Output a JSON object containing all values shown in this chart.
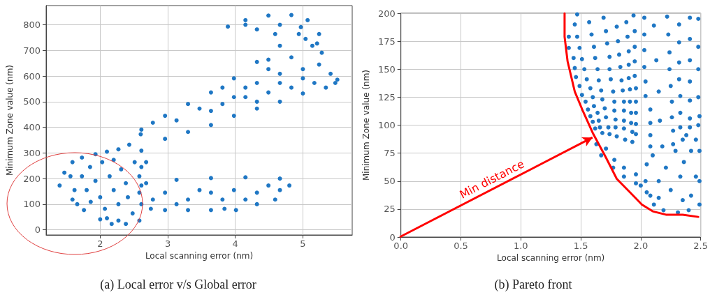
{
  "chart_data": [
    {
      "type": "scatter",
      "title": "(a) Local error v/s Global error",
      "xlabel": "Local scanning error (nm)",
      "ylabel": "Minimum Zone value (nm)",
      "xlim": [
        1.2,
        5.73
      ],
      "ylim": [
        -20,
        875
      ],
      "xticks": [
        2,
        3,
        4,
        5
      ],
      "yticks": [
        0,
        100,
        200,
        300,
        400,
        500,
        600,
        700,
        800
      ],
      "grid": true,
      "marker": "circle",
      "series": [
        {
          "color": "#1f77c4",
          "x": [
            1.4,
            1.47,
            1.59,
            1.73,
            1.93,
            2.1,
            2.27,
            2.43,
            1.59,
            1.76,
            2.0,
            2.17,
            2.38,
            2.58,
            1.56,
            1.62,
            1.73,
            1.8,
            1.86,
            1.85,
            1.93,
            2.0,
            2.07,
            2.03,
            2.14,
            2.2,
            2.27,
            2.2,
            2.31,
            2.38,
            2.41,
            2.48,
            2.51,
            2.58,
            2.58,
            1.66,
            2.1,
            2.27,
            2.6,
            2.61,
            2.61,
            2.61,
            2.61,
            2.68,
            3.13,
            3.64,
            4.15,
            4.66,
            2.75,
            2.96,
            3.3,
            3.64,
            4.01,
            4.32,
            4.59,
            4.8,
            2.96,
            3.3,
            3.47,
            3.81,
            3.98,
            4.32,
            4.49,
            3.64,
            4.15,
            3.13,
            2.78,
            4.66,
            3.84,
            2.68,
            2.96,
            3.3,
            3.64,
            3.98,
            4.32,
            4.66,
            5.0,
            5.34,
            5.48,
            2.61,
            2.78,
            2.96,
            3.3,
            3.64,
            3.98,
            4.32,
            4.66,
            4.94,
            5.28,
            5.24,
            5.41,
            5.51,
            3.13,
            3.47,
            3.81,
            4.15,
            4.49,
            4.83,
            5.17,
            3.98,
            4.32,
            4.66,
            5.0,
            4.83,
            4.49,
            3.64,
            4.32,
            5.0,
            4.66,
            4.15,
            3.81,
            4.49,
            5.14,
            3.89,
            4.15,
            4.49,
            4.83,
            5.07,
            5.24,
            5.21,
            4.32,
            4.59,
            4.97,
            5.04,
            4.15,
            4.66
          ],
          "values": [
            173,
            223,
            264,
            282,
            295,
            305,
            314,
            332,
            118,
            77,
            41,
            23,
            23,
            36,
            209,
            155,
            209,
            155,
            109,
            245,
            191,
            127,
            82,
            264,
            209,
            155,
            100,
            273,
            236,
            182,
            127,
            64,
            264,
            209,
            145,
            100,
            45,
            36,
            373,
            309,
            245,
            173,
            100,
            182,
            195,
            202,
            205,
            200,
            82,
            77,
            77,
            77,
            77,
            100,
            118,
            173,
            145,
            118,
            155,
            118,
            155,
            145,
            173,
            145,
            118,
            100,
            118,
            155,
            82,
            264,
            355,
            382,
            409,
            445,
            473,
            500,
            532,
            555,
            573,
            391,
            418,
            445,
            491,
            536,
            591,
            655,
            718,
            764,
            691,
            645,
            609,
            586,
            427,
            473,
            491,
            518,
            536,
            555,
            573,
            518,
            573,
            609,
            627,
            673,
            627,
            464,
            500,
            591,
            573,
            555,
            555,
            664,
            718,
            793,
            818,
            836,
            838,
            818,
            764,
            727,
            782,
            764,
            791,
            745,
            800,
            800
          ]
        }
      ]
    },
    {
      "type": "scatter",
      "title": "(b) Pareto front",
      "xlabel": "Local scanning error (nm)",
      "ylabel": "Minimum Zone value (nm)",
      "xlim": [
        0,
        2.5
      ],
      "ylim": [
        0,
        200
      ],
      "xticks": [
        {
          "value": 0,
          "label": "0.0"
        },
        0.5,
        {
          "value": 1,
          "label": "1.0"
        },
        1.5,
        {
          "value": 2,
          "label": "2.0"
        },
        2.5
      ],
      "yticks": [
        0,
        25,
        50,
        75,
        100,
        125,
        150,
        175,
        200
      ],
      "grid": true,
      "marker": "circle",
      "annotations": [
        "Min distance"
      ],
      "series": [
        {
          "color": "#1f77c4",
          "x": [
            1.4,
            1.4,
            1.44,
            1.45,
            1.46,
            1.49,
            1.51,
            1.54,
            1.56,
            1.58,
            1.6,
            1.62,
            1.47,
            1.45,
            1.47,
            1.49,
            1.51,
            1.53,
            1.55,
            1.58,
            1.6,
            1.61,
            1.64,
            1.65,
            1.66,
            1.68,
            1.57,
            1.59,
            1.61,
            1.62,
            1.64,
            1.65,
            1.67,
            1.68,
            1.7,
            1.71,
            1.73,
            1.74,
            1.69,
            1.71,
            1.72,
            1.74,
            1.74,
            1.75,
            1.77,
            1.78,
            1.78,
            1.79,
            1.79,
            1.8,
            1.8,
            1.81,
            1.82,
            1.83,
            1.84,
            1.85,
            1.86,
            1.86,
            1.86,
            1.86,
            1.87,
            1.88,
            1.89,
            1.9,
            1.9,
            1.9,
            1.91,
            1.91,
            1.92,
            1.92,
            1.93,
            1.93,
            1.94,
            1.95,
            1.95,
            1.95,
            1.95,
            1.96,
            1.96,
            1.96,
            1.96,
            1.96,
            2.03,
            2.03,
            2.03,
            2.03,
            2.04,
            2.04,
            2.08,
            2.08,
            2.08,
            2.08,
            2.1,
            2.05,
            2.11,
            2.13,
            2.15,
            2.16,
            2.18,
            2.22,
            2.23,
            2.24,
            2.24,
            2.25,
            2.26,
            2.26,
            2.27,
            2.27,
            2.32,
            2.32,
            2.32,
            2.32,
            2.33,
            2.33,
            2.33,
            2.41,
            2.41,
            2.41,
            2.41,
            2.41,
            2.41,
            2.41,
            2.48,
            2.48,
            2.48,
            2.48,
            2.48,
            2.49,
            2.49,
            2.49,
            1.71,
            1.78,
            1.86,
            1.96,
            2.04,
            2.08,
            2.11,
            2.19,
            2.31,
            2.4,
            2.0,
            2.05,
            2.15,
            2.21,
            2.29,
            2.35,
            2.38,
            2.25,
            2.33,
            2.36,
            2.42,
            2.46,
            2.49,
            2.35,
            2.42,
            2.46,
            2.15,
            1.96,
            1.86,
            1.77,
            1.67,
            1.63
          ],
          "values": [
            179,
            169,
            160,
            151,
            143,
            135,
            127,
            121,
            114,
            108,
            103,
            97,
            199,
            190,
            179,
            169,
            159,
            150,
            141,
            133,
            125,
            117,
            111,
            104,
            98,
            93,
            192,
            181,
            170,
            160,
            150,
            140,
            131,
            123,
            115,
            107,
            98,
            92,
            196,
            184,
            173,
            161,
            150,
            141,
            130,
            121,
            113,
            105,
            98,
            90,
            188,
            175,
            163,
            152,
            140,
            131,
            121,
            113,
            104,
            97,
            87,
            192,
            179,
            166,
            154,
            142,
            132,
            121,
            111,
            102,
            94,
            85,
            198,
            184,
            170,
            157,
            144,
            133,
            121,
            111,
            101,
            92,
            196,
            181,
            167,
            152,
            139,
            126,
            114,
            102,
            91,
            81,
            73,
            65,
            189,
            158,
            130,
            104,
            81,
            197,
            181,
            165,
            150,
            135,
            121,
            107,
            95,
            83,
            190,
            174,
            156,
            141,
            126,
            111,
            98,
            196,
            177,
            158,
            139,
            122,
            106,
            98,
            195,
            170,
            150,
            125,
            100,
            77,
            50,
            29,
            79,
            69,
            62,
            56,
            50,
            37,
            29,
            24,
            22,
            24,
            46,
            40,
            50,
            62,
            77,
            87,
            91,
            42,
            54,
            67,
            77,
            87,
            108,
            33,
            37,
            54,
            35,
            48,
            54,
            62,
            73,
            83
          ]
        },
        {
          "type": "line",
          "color": "#ff0000",
          "marker": "none",
          "x": [
            1.365,
            1.365,
            1.39,
            1.45,
            1.52,
            1.6,
            1.71,
            1.8,
            1.91,
            2.01,
            2.1,
            2.21,
            2.35,
            2.48
          ],
          "values": [
            200,
            179,
            157,
            130,
            112,
            93,
            71,
            52,
            40,
            29,
            23,
            20,
            20,
            18
          ]
        }
      ]
    }
  ]
}
